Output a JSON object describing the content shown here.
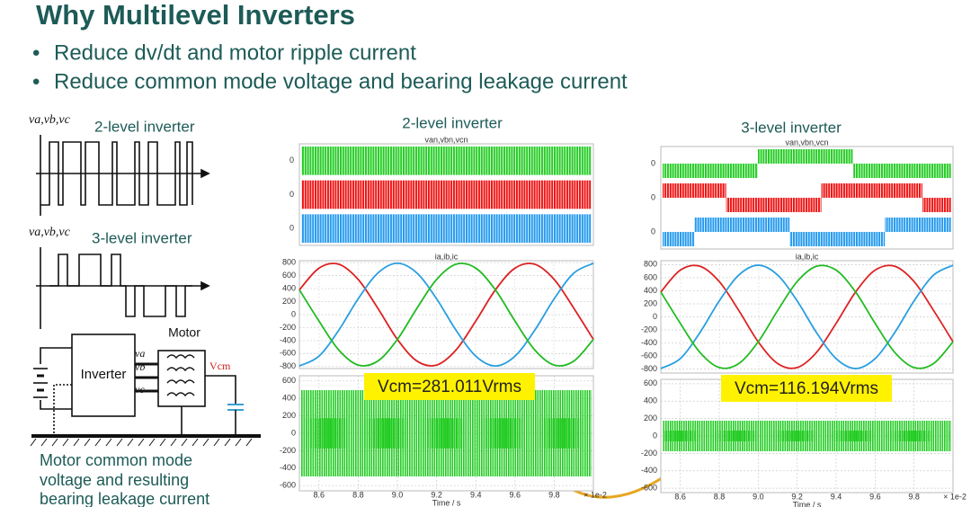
{
  "slide": {
    "title": "Why Multilevel Inverters",
    "bullets": [
      "Reduce dv/dt and motor ripple current",
      "Reduce common mode voltage and bearing leakage current"
    ]
  },
  "diagram": {
    "wave_labels": [
      "va,vb,vc",
      "va,vb,vc"
    ],
    "two_level": "2-level inverter",
    "three_level": "3-level inverter",
    "inverter": "Inverter",
    "motor": "Motor",
    "phase_labels": [
      "va",
      "vb",
      "vc"
    ],
    "vcm": "Vcm",
    "caption": [
      "Motor common mode",
      "voltage and resulting",
      "bearing leakage current"
    ]
  },
  "chart_data": [
    {
      "type": "pwm",
      "title": "2-level inverter",
      "subtitle": "van,vbn,vcn",
      "rows": [
        {
          "color": "#22cc22",
          "ytick": 0
        },
        {
          "color": "#ee1111",
          "ytick": 0
        },
        {
          "color": "#2299ee",
          "ytick": 0
        }
      ]
    },
    {
      "type": "line",
      "subtitle": "ia,ib,ic",
      "grid": true,
      "x": [
        8.5,
        8.6,
        8.7,
        8.8,
        8.9,
        9.0,
        9.1,
        9.2,
        9.3,
        9.4,
        9.5,
        9.6,
        9.7,
        9.8,
        9.9,
        10.0
      ],
      "xlim": [
        8.5,
        10.0
      ],
      "ylim": [
        -830,
        830
      ],
      "yticks": [
        800,
        600,
        400,
        200,
        0,
        -200,
        -400,
        -600,
        -800
      ],
      "series": [
        {
          "color": "#dd2222",
          "values": [
            381,
            715,
            776,
            541,
            99,
            -381,
            -715,
            -776,
            -541,
            -99,
            381,
            715,
            776,
            541,
            99,
            -381
          ]
        },
        {
          "color": "#2a9fe0",
          "values": [
            -790,
            -639,
            -244,
            244,
            639,
            790,
            639,
            244,
            -244,
            -639,
            -790,
            -639,
            -244,
            244,
            639,
            790
          ]
        },
        {
          "color": "#22bb22",
          "values": [
            381,
            -99,
            -541,
            -776,
            -715,
            -381,
            99,
            541,
            776,
            715,
            381,
            -99,
            -541,
            -776,
            -715,
            -381
          ]
        }
      ]
    },
    {
      "type": "band",
      "color": "#22cc22",
      "grid": true,
      "annotation": "Vcm=281.011Vrms",
      "xlim": [
        8.5,
        10.0
      ],
      "xticks": [
        8.6,
        8.8,
        {
          "value": 9,
          "label": "9.0"
        },
        9.2,
        9.4,
        9.6,
        9.8
      ],
      "ylim": [
        -660,
        660
      ],
      "yticks": [
        600,
        400,
        200,
        0,
        -200,
        -400,
        -600
      ],
      "xlabel": "Time / s",
      "xunit": "× 1e-2"
    },
    {
      "type": "pwm",
      "title": "3-level inverter",
      "subtitle": "van,vbn,vcn",
      "rows": [
        {
          "color": "#22cc22",
          "ytick": 0
        },
        {
          "color": "#ee1111",
          "ytick": 0
        },
        {
          "color": "#2299ee",
          "ytick": 0
        }
      ]
    },
    {
      "type": "line",
      "subtitle": "ia,ib,ic",
      "grid": true,
      "x": [
        8.5,
        8.6,
        8.7,
        8.8,
        8.9,
        9.0,
        9.1,
        9.2,
        9.3,
        9.4,
        9.5,
        9.6,
        9.7,
        9.8,
        9.9,
        10.0
      ],
      "xlim": [
        8.5,
        10.0
      ],
      "ylim": [
        -860,
        860
      ],
      "yticks": [
        800,
        600,
        400,
        200,
        0,
        -200,
        -400,
        -600,
        -800
      ],
      "series": [
        {
          "color": "#dd2222",
          "values": [
            381,
            715,
            776,
            541,
            99,
            -381,
            -715,
            -776,
            -541,
            -99,
            381,
            715,
            776,
            541,
            99,
            -381
          ]
        },
        {
          "color": "#2a9fe0",
          "values": [
            -790,
            -639,
            -244,
            244,
            639,
            790,
            639,
            244,
            -244,
            -639,
            -790,
            -639,
            -244,
            244,
            639,
            790
          ]
        },
        {
          "color": "#22bb22",
          "values": [
            381,
            -99,
            -541,
            -776,
            -715,
            -381,
            99,
            541,
            776,
            715,
            381,
            -99,
            -541,
            -776,
            -715,
            -381
          ]
        }
      ]
    },
    {
      "type": "band",
      "color": "#22cc22",
      "grid": true,
      "annotation": "Vcm=116.194Vrms",
      "xlim": [
        8.5,
        10.0
      ],
      "xticks": [
        8.6,
        8.8,
        {
          "value": 9,
          "label": "9.0"
        },
        9.2,
        9.4,
        9.6,
        9.8
      ],
      "ylim": [
        -650,
        650
      ],
      "yticks": [
        600,
        400,
        200,
        0,
        -200,
        -400,
        -600
      ],
      "xlabel": "Time / s",
      "xunit": "× 1e-2"
    }
  ]
}
